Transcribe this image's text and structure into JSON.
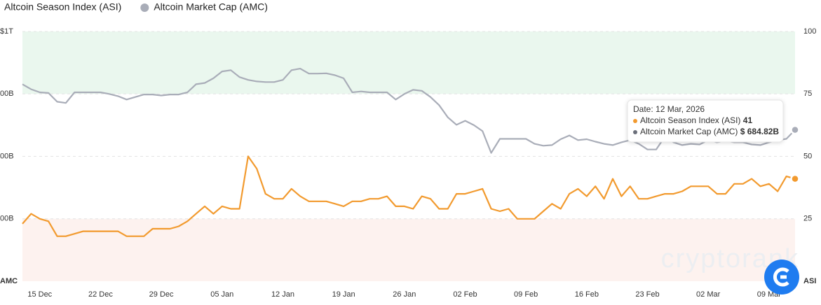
{
  "chart_data": {
    "type": "line",
    "legend": "top-left",
    "grid": true,
    "y_label": "AMC",
    "y2_label": "ASI",
    "categories": [
      null,
      null,
      "15 Dec",
      null,
      null,
      null,
      null,
      null,
      null,
      "22 Dec",
      null,
      null,
      null,
      null,
      null,
      null,
      "29 Dec",
      null,
      null,
      null,
      null,
      null,
      null,
      "05 Jan",
      null,
      null,
      null,
      null,
      null,
      null,
      "12 Jan",
      null,
      null,
      null,
      null,
      null,
      null,
      "19 Jan",
      null,
      null,
      null,
      null,
      null,
      null,
      "26 Jan",
      null,
      null,
      null,
      null,
      null,
      null,
      "02 Feb",
      null,
      null,
      null,
      null,
      null,
      null,
      "09 Feb",
      null,
      null,
      null,
      null,
      null,
      null,
      "16 Feb",
      null,
      null,
      null,
      null,
      null,
      null,
      "23 Feb",
      null,
      null,
      null,
      null,
      null,
      null,
      "02 Mar",
      null,
      null,
      null,
      null,
      null,
      null,
      "09 Mar",
      null,
      null,
      null
    ],
    "ylim": [
      200,
      1000
    ],
    "yticks": [
      {
        "value": 1000,
        "label": "$1T"
      },
      {
        "value": 800,
        "label": "00B"
      },
      {
        "value": 600,
        "label": "00B"
      },
      {
        "value": 400,
        "label": "00B"
      }
    ],
    "y2lim": [
      0,
      100
    ],
    "y2ticks": [
      25,
      50,
      75,
      100
    ],
    "bands": [
      {
        "from": 75,
        "to": 100,
        "color": "#eaf7ee"
      },
      {
        "from": 0,
        "to": 25,
        "color": "#fdf2ef"
      }
    ],
    "series": [
      {
        "name": "Altcoin Season Index (ASI)",
        "color": "#f29a2e",
        "axis": "y2",
        "values": [
          23,
          27,
          25,
          24,
          18,
          18,
          19,
          20,
          20,
          20,
          20,
          20,
          18,
          18,
          18,
          21,
          21,
          21,
          22,
          24,
          27,
          30,
          27,
          30,
          29,
          29,
          50,
          45,
          35,
          33,
          33,
          37,
          34,
          32,
          32,
          32,
          31,
          30,
          32,
          32,
          33,
          33,
          34,
          30,
          30,
          29,
          34,
          33,
          29,
          29,
          35,
          35,
          36,
          37,
          29,
          28,
          29,
          25,
          25,
          25,
          28,
          31,
          29,
          35,
          37,
          34,
          38,
          33,
          41,
          34,
          38,
          33,
          33,
          34,
          35,
          35,
          36,
          38,
          38,
          38,
          35,
          35,
          39,
          39,
          41,
          38,
          39,
          36,
          42,
          41
        ]
      },
      {
        "name": "Altcoin Market Cap (AMC)",
        "color": "#a9adb8",
        "values": [
          831,
          815,
          805,
          803,
          775,
          771,
          805,
          805,
          805,
          805,
          800,
          793,
          782,
          790,
          798,
          798,
          795,
          798,
          798,
          805,
          831,
          835,
          850,
          872,
          876,
          854,
          845,
          840,
          838,
          838,
          845,
          876,
          881,
          865,
          865,
          866,
          860,
          850,
          805,
          808,
          805,
          805,
          805,
          782,
          800,
          813,
          810,
          790,
          764,
          725,
          701,
          714,
          700,
          681,
          611,
          656,
          656,
          656,
          656,
          640,
          634,
          636,
          655,
          667,
          652,
          655,
          647,
          640,
          636,
          645,
          652,
          640,
          622,
          622,
          663,
          645,
          636,
          640,
          638,
          652,
          645,
          650,
          645,
          645,
          638,
          636,
          645,
          652,
          656,
          684.82
        ]
      }
    ],
    "tooltip": {
      "title": "Date: 12 Mar, 2026",
      "amc_label": "$ 684.82B"
    },
    "watermark": "cryptorank"
  }
}
